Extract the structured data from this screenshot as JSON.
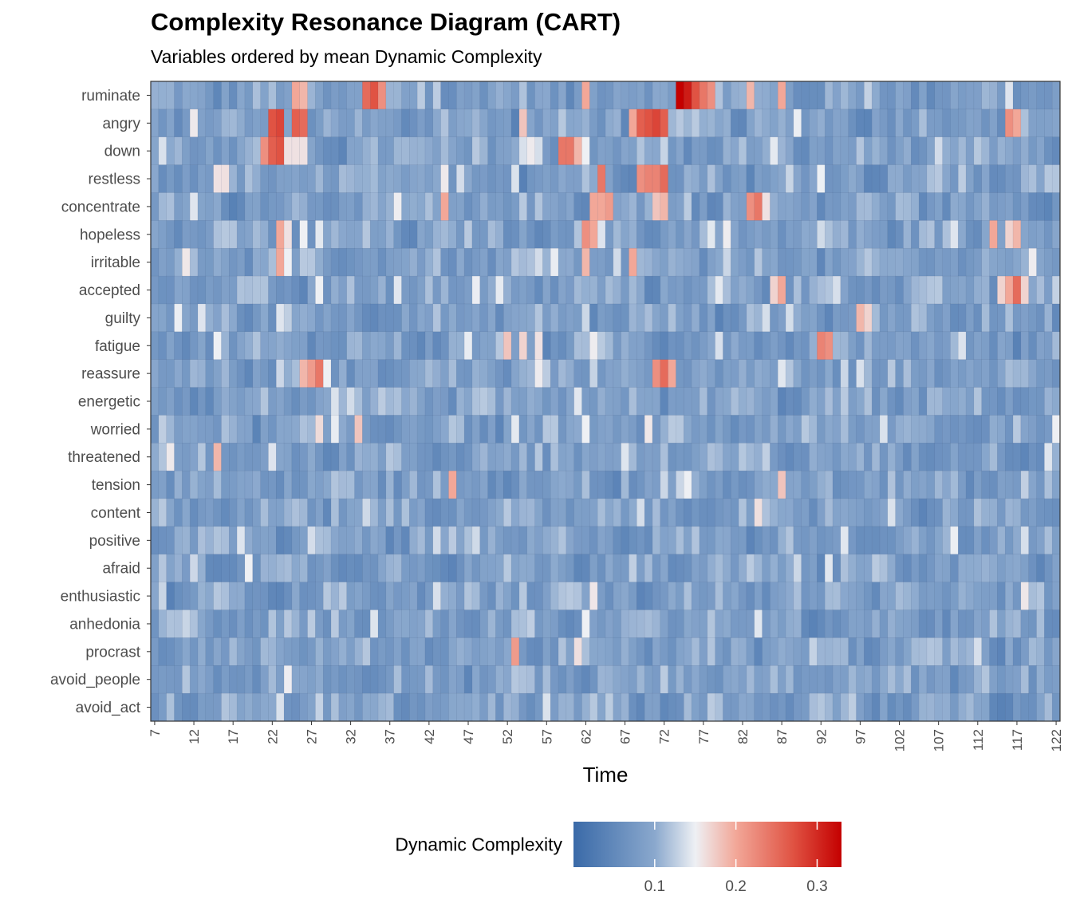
{
  "chart_data": {
    "type": "heatmap",
    "title": "Complexity Resonance Diagram (CART)",
    "subtitle": "Variables ordered by mean Dynamic Complexity",
    "xlabel": "Time",
    "ylabel": "",
    "x_range": [
      7,
      122
    ],
    "x_ticks": [
      7,
      12,
      17,
      22,
      27,
      32,
      37,
      42,
      47,
      52,
      57,
      62,
      67,
      72,
      77,
      82,
      87,
      92,
      97,
      102,
      107,
      112,
      117,
      122
    ],
    "variables": [
      "ruminate",
      "angry",
      "down",
      "restless",
      "concentrate",
      "hopeless",
      "irritable",
      "accepted",
      "guilty",
      "fatigue",
      "reassure",
      "energetic",
      "worried",
      "threatened",
      "tension",
      "content",
      "positive",
      "afraid",
      "enthusiastic",
      "anhedonia",
      "procrast",
      "avoid_people",
      "avoid_act"
    ],
    "hotspots": {
      "ruminate": [
        [
          34,
          0.25
        ],
        [
          35,
          0.27
        ],
        [
          36,
          0.22
        ],
        [
          74,
          0.33
        ],
        [
          75,
          0.31
        ],
        [
          76,
          0.27
        ],
        [
          77,
          0.24
        ],
        [
          78,
          0.22
        ],
        [
          62,
          0.2
        ],
        [
          83,
          0.19
        ],
        [
          87,
          0.2
        ],
        [
          25,
          0.2
        ],
        [
          26,
          0.19
        ]
      ],
      "angry": [
        [
          22,
          0.27
        ],
        [
          23,
          0.28
        ],
        [
          25,
          0.26
        ],
        [
          26,
          0.25
        ],
        [
          69,
          0.26
        ],
        [
          70,
          0.27
        ],
        [
          71,
          0.28
        ],
        [
          72,
          0.26
        ],
        [
          68,
          0.2
        ],
        [
          54,
          0.18
        ],
        [
          116,
          0.22
        ],
        [
          117,
          0.2
        ]
      ],
      "down": [
        [
          21,
          0.22
        ],
        [
          22,
          0.26
        ],
        [
          23,
          0.27
        ],
        [
          24,
          0.16
        ],
        [
          25,
          0.16
        ],
        [
          26,
          0.16
        ],
        [
          59,
          0.24
        ],
        [
          60,
          0.24
        ],
        [
          61,
          0.19
        ],
        [
          62,
          0.15
        ]
      ],
      "restless": [
        [
          15,
          0.16
        ],
        [
          53,
          0.14
        ],
        [
          64,
          0.24
        ],
        [
          69,
          0.22
        ],
        [
          70,
          0.23
        ],
        [
          71,
          0.23
        ],
        [
          72,
          0.25
        ]
      ],
      "concentrate": [
        [
          44,
          0.2
        ],
        [
          63,
          0.2
        ],
        [
          64,
          0.2
        ],
        [
          65,
          0.21
        ],
        [
          71,
          0.18
        ],
        [
          72,
          0.19
        ],
        [
          83,
          0.22
        ],
        [
          84,
          0.24
        ],
        [
          85,
          0.16
        ]
      ],
      "hopeless": [
        [
          23,
          0.2
        ],
        [
          24,
          0.16
        ],
        [
          26,
          0.15
        ],
        [
          62,
          0.22
        ],
        [
          63,
          0.2
        ],
        [
          114,
          0.2
        ],
        [
          116,
          0.17
        ],
        [
          117,
          0.19
        ]
      ],
      "irritable": [
        [
          23,
          0.2
        ],
        [
          24,
          0.15
        ],
        [
          62,
          0.19
        ],
        [
          68,
          0.2
        ]
      ],
      "accepted": [
        [
          28,
          0.15
        ],
        [
          86,
          0.17
        ],
        [
          87,
          0.2
        ],
        [
          115,
          0.17
        ],
        [
          116,
          0.2
        ],
        [
          117,
          0.25
        ],
        [
          118,
          0.17
        ]
      ],
      "guilty": [
        [
          97,
          0.19
        ],
        [
          98,
          0.17
        ]
      ],
      "fatigue": [
        [
          15,
          0.15
        ],
        [
          52,
          0.18
        ],
        [
          54,
          0.17
        ],
        [
          56,
          0.16
        ],
        [
          92,
          0.23
        ],
        [
          93,
          0.22
        ]
      ],
      "reassure": [
        [
          26,
          0.19
        ],
        [
          27,
          0.21
        ],
        [
          28,
          0.24
        ],
        [
          29,
          0.15
        ],
        [
          71,
          0.22
        ],
        [
          72,
          0.25
        ],
        [
          73,
          0.2
        ]
      ],
      "energetic": [
        [
          30,
          0.14
        ]
      ],
      "worried": [
        [
          33,
          0.18
        ],
        [
          62,
          0.15
        ],
        [
          100,
          0.14
        ]
      ],
      "threatened": [
        [
          15,
          0.19
        ]
      ],
      "tension": [
        [
          45,
          0.2
        ],
        [
          75,
          0.15
        ],
        [
          87,
          0.18
        ]
      ],
      "content": [
        [
          101,
          0.14
        ]
      ],
      "positive": [],
      "afraid": [
        [
          19,
          0.15
        ]
      ],
      "enthusiastic": [],
      "anhedonia": [
        [
          62,
          0.15
        ]
      ],
      "procrast": [
        [
          53,
          0.21
        ]
      ],
      "avoid_people": [],
      "avoid_act": [
        [
          57,
          0.14
        ]
      ]
    },
    "color_scale": {
      "name": "Dynamic Complexity",
      "stops": [
        "#3a6aa8",
        "#8aa8cd",
        "#eef0f4",
        "#f2a798",
        "#e05343",
        "#c40000"
      ],
      "domain": [
        0.0,
        0.1,
        0.15,
        0.2,
        0.27,
        0.33
      ],
      "legend_ticks": [
        0.1,
        0.2,
        0.3
      ]
    }
  }
}
